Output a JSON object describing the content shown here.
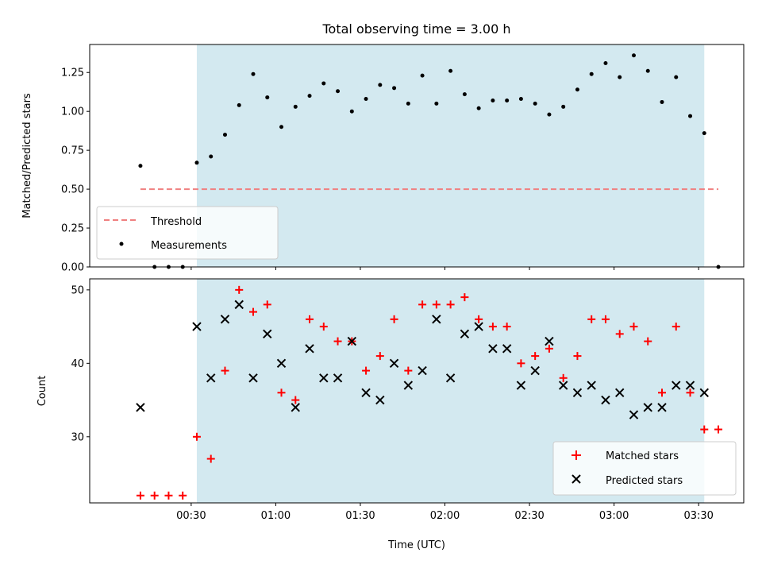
{
  "chart_data": [
    {
      "type": "scatter",
      "title": "Total observing time = 3.00 h",
      "xlabel": "",
      "ylabel": "Matched/Predicted stars",
      "ylim": [
        0,
        1.43
      ],
      "yticks": [
        "0.00",
        "0.25",
        "0.50",
        "0.75",
        "1.00",
        "1.25"
      ],
      "shaded_span": [
        "00:32",
        "03:32"
      ],
      "shade_color": "#d3e9f0",
      "threshold": {
        "name": "Threshold",
        "y": 0.5,
        "x_range": [
          "00:12",
          "03:37"
        ],
        "color": "#f08080"
      },
      "series": [
        {
          "name": "Measurements",
          "color": "#000000",
          "x": [
            "00:12",
            "00:17",
            "00:22",
            "00:27",
            "00:32",
            "00:37",
            "00:42",
            "00:47",
            "00:52",
            "00:57",
            "01:02",
            "01:07",
            "01:12",
            "01:17",
            "01:22",
            "01:27",
            "01:32",
            "01:37",
            "01:42",
            "01:47",
            "01:52",
            "01:57",
            "02:02",
            "02:07",
            "02:12",
            "02:17",
            "02:22",
            "02:27",
            "02:32",
            "02:37",
            "02:42",
            "02:47",
            "02:52",
            "02:57",
            "03:02",
            "03:07",
            "03:12",
            "03:17",
            "03:22",
            "03:27",
            "03:32",
            "03:37"
          ],
          "y": [
            0.65,
            0.0,
            0.0,
            0.0,
            0.67,
            0.71,
            0.85,
            1.04,
            1.24,
            1.09,
            0.9,
            1.03,
            1.1,
            1.18,
            1.13,
            1.0,
            1.08,
            1.17,
            1.15,
            1.05,
            1.23,
            1.05,
            1.26,
            1.11,
            1.02,
            1.07,
            1.07,
            1.08,
            1.05,
            0.98,
            1.03,
            1.14,
            1.24,
            1.31,
            1.22,
            1.36,
            1.26,
            1.06,
            1.22,
            0.97,
            0.86,
            0.0
          ]
        }
      ],
      "legend": {
        "position": "lower left",
        "entries": [
          "Threshold",
          "Measurements"
        ]
      }
    },
    {
      "type": "scatter",
      "title": "",
      "xlabel": "Time (UTC)",
      "ylabel": "Count",
      "ylim": [
        21,
        51.5
      ],
      "yticks": [
        "30",
        "40",
        "50"
      ],
      "xticks": [
        "00:30",
        "01:00",
        "01:30",
        "02:00",
        "02:30",
        "03:00",
        "03:30"
      ],
      "shaded_span": [
        "00:32",
        "03:32"
      ],
      "x": [
        "00:12",
        "00:17",
        "00:22",
        "00:27",
        "00:32",
        "00:37",
        "00:42",
        "00:47",
        "00:52",
        "00:57",
        "01:02",
        "01:07",
        "01:12",
        "01:17",
        "01:22",
        "01:27",
        "01:32",
        "01:37",
        "01:42",
        "01:47",
        "01:52",
        "01:57",
        "02:02",
        "02:07",
        "02:12",
        "02:17",
        "02:22",
        "02:27",
        "02:32",
        "02:37",
        "02:42",
        "02:47",
        "02:52",
        "02:57",
        "03:02",
        "03:07",
        "03:12",
        "03:17",
        "03:22",
        "03:27",
        "03:32",
        "03:37"
      ],
      "series": [
        {
          "name": "Matched stars",
          "marker": "+",
          "color": "#ff0000",
          "values": [
            22,
            22,
            22,
            22,
            30,
            27,
            39,
            50,
            47,
            48,
            36,
            35,
            46,
            45,
            43,
            43,
            39,
            41,
            46,
            39,
            48,
            48,
            48,
            49,
            46,
            45,
            45,
            40,
            41,
            42,
            38,
            41,
            46,
            46,
            44,
            45,
            43,
            36,
            45,
            36,
            31,
            31
          ]
        },
        {
          "name": "Predicted stars",
          "marker": "x",
          "color": "#000000",
          "values": [
            34,
            null,
            null,
            null,
            45,
            38,
            46,
            48,
            38,
            44,
            40,
            34,
            42,
            38,
            38,
            43,
            36,
            35,
            40,
            37,
            39,
            46,
            38,
            44,
            45,
            42,
            42,
            37,
            39,
            43,
            37,
            36,
            37,
            35,
            36,
            33,
            34,
            34,
            37,
            37,
            36,
            null
          ]
        }
      ],
      "legend": {
        "position": "lower right",
        "entries": [
          "Matched stars",
          "Predicted stars"
        ]
      }
    }
  ]
}
